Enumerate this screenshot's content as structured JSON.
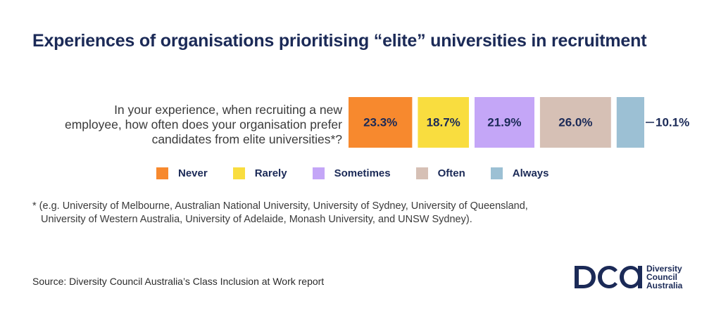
{
  "title": "Experiences of organisations prioritising “elite” universities in recruitment",
  "question_lines": [
    "In your experience, when recruiting a new",
    "employee, how often does your organisation prefer",
    "candidates from elite universities*?"
  ],
  "chart_data": {
    "type": "bar",
    "orientation": "horizontal-stacked",
    "categories": [
      "Never",
      "Rarely",
      "Sometimes",
      "Often",
      "Always"
    ],
    "values": [
      23.3,
      18.7,
      21.9,
      26.0,
      10.1
    ],
    "value_labels": [
      "23.3%",
      "18.7%",
      "21.9%",
      "26.0%",
      "10.1%"
    ],
    "colors": [
      "#f7892e",
      "#f9dd3f",
      "#c4a6f7",
      "#d6c0b5",
      "#9cc0d4"
    ],
    "legend_position": "bottom",
    "grid": false
  },
  "legend": {
    "items": [
      {
        "label": "Never",
        "color": "#f7892e"
      },
      {
        "label": "Rarely",
        "color": "#f9dd3f"
      },
      {
        "label": "Sometimes",
        "color": "#c4a6f7"
      },
      {
        "label": "Often",
        "color": "#d6c0b5"
      },
      {
        "label": "Always",
        "color": "#9cc0d4"
      }
    ]
  },
  "footnote": {
    "line1": "* (e.g. University of Melbourne, Australian National University, University of Sydney, University of Queensland,",
    "line2": "University of Western Australia, University of Adelaide, Monash University, and UNSW Sydney)."
  },
  "source": "Source: Diversity Council Australia’s Class Inclusion at Work report",
  "logo": {
    "mark": "DCA",
    "line1": "Diversity",
    "line2": "Council",
    "line3": "Australia",
    "color": "#1b2a57"
  }
}
